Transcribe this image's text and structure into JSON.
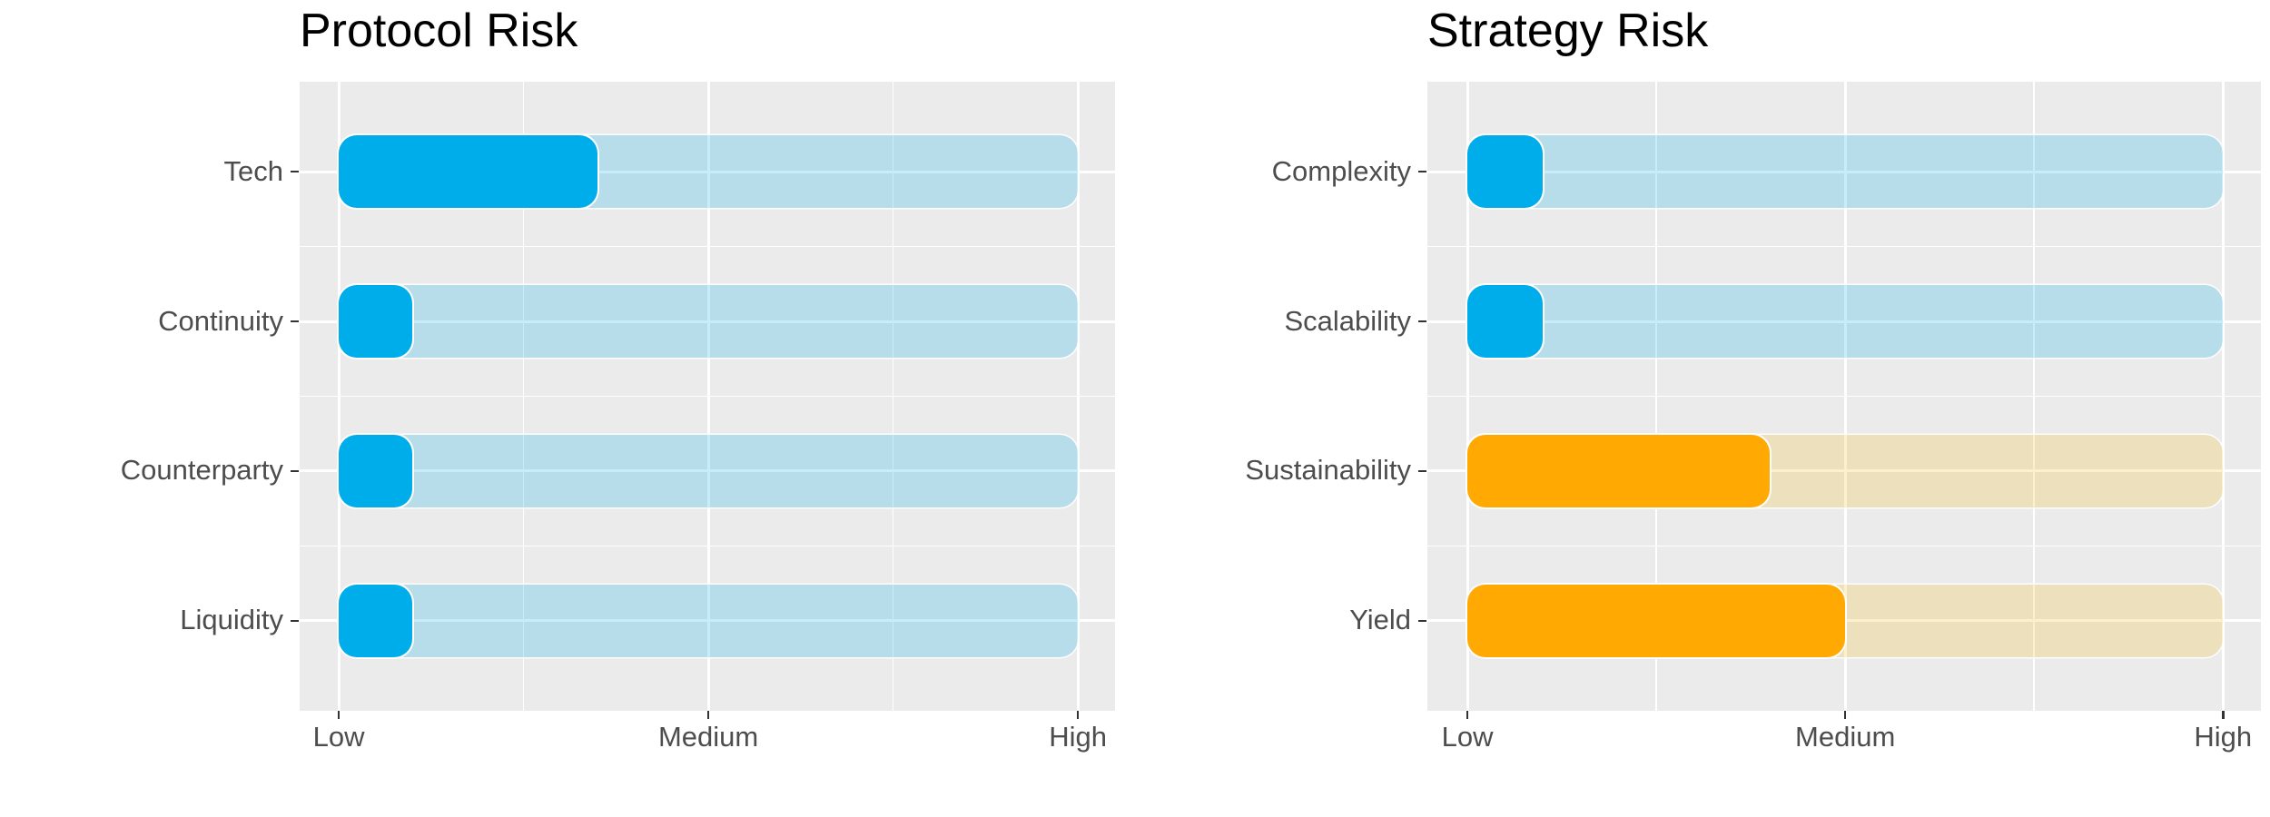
{
  "figure": {
    "background": "#FFFFFF",
    "kind": "paired horizontal progress-bar risk charts"
  },
  "colors": {
    "panel_background": "#EBEBEB",
    "gridline": "#FFFFFF",
    "title_text": "#000000",
    "axis_text": "#4D4D4D",
    "tick_mark": "#333333",
    "palettes": {
      "blue": {
        "fill": "#00ADEB",
        "track": "rgba(0,174,235,0.22)"
      },
      "orange": {
        "fill": "#FFA902",
        "track": "rgba(245,179,0,0.20)"
      }
    }
  },
  "chart_data": [
    {
      "type": "bar",
      "orientation": "horizontal",
      "title": "Protocol Risk",
      "categories": [
        "Tech",
        "Continuity",
        "Counterparty",
        "Liquidity"
      ],
      "values": [
        0.35,
        0.1,
        0.1,
        0.1
      ],
      "value_units": "fraction of Low-to-High axis (Tech ~= between Low and Medium, others ~= Low)",
      "series_palette": [
        "blue",
        "blue",
        "blue",
        "blue"
      ],
      "x_tick_labels": [
        "Low",
        "Medium",
        "High"
      ],
      "xlabel": "",
      "ylabel": "",
      "xlim": [
        "Low",
        "High"
      ],
      "grid": true,
      "legend": false,
      "track_spans_full_axis": true
    },
    {
      "type": "bar",
      "orientation": "horizontal",
      "title": "Strategy Risk",
      "categories": [
        "Complexity",
        "Scalability",
        "Sustainability",
        "Yield"
      ],
      "values": [
        0.1,
        0.1,
        0.4,
        0.5
      ],
      "value_units": "fraction of Low-to-High axis (Sustainability ~= below Medium, Yield ~= Medium)",
      "series_palette": [
        "blue",
        "blue",
        "orange",
        "orange"
      ],
      "x_tick_labels": [
        "Low",
        "Medium",
        "High"
      ],
      "xlabel": "",
      "ylabel": "",
      "xlim": [
        "Low",
        "High"
      ],
      "grid": true,
      "legend": false,
      "track_spans_full_axis": true
    }
  ]
}
